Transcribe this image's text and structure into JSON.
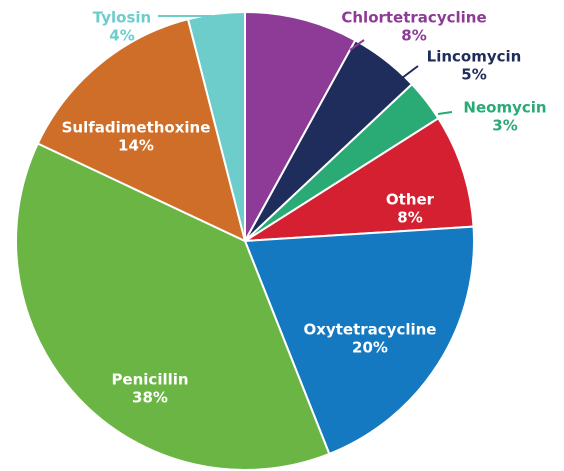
{
  "chart_data": {
    "type": "pie",
    "categories": [
      "Chlortetracycline",
      "Lincomycin",
      "Neomycin",
      "Other",
      "Oxytetracycline",
      "Penicillin",
      "Sulfadimethoxine",
      "Tylosin"
    ],
    "values": [
      8,
      5,
      3,
      8,
      20,
      38,
      14,
      4
    ],
    "value_labels": [
      "8%",
      "5%",
      "3%",
      "8%",
      "20%",
      "38%",
      "14%",
      "4%"
    ],
    "colors": [
      "#8e3b97",
      "#1f2d5c",
      "#2aaa75",
      "#d42030",
      "#1479c0",
      "#6ab544",
      "#cf6e28",
      "#6ccdcb"
    ]
  }
}
